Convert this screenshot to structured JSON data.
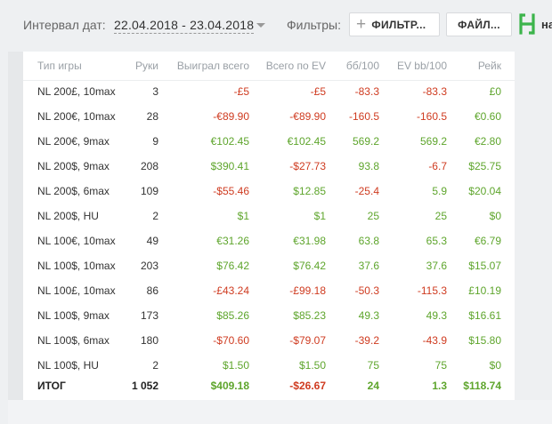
{
  "toolbar": {
    "date_label": "Интервал дат:",
    "date_range": "22.04.2018 - 23.04.2018",
    "filters_label": "Фильтры:",
    "filter_button": "ФИЛЬТР...",
    "file_button": "ФАЙЛ...",
    "brand_text": "на"
  },
  "table": {
    "headers": [
      "Тип игры",
      "Руки",
      "Выиграл всего",
      "Всего по EV",
      "бб/100",
      "EV bb/100",
      "Рейк"
    ],
    "rows": [
      {
        "game": "NL 200£, 10max",
        "hands": "3",
        "won": "-£5",
        "ev": "-£5",
        "bb": "-83.3",
        "evbb": "-83.3",
        "rake": "£0"
      },
      {
        "game": "NL 200€, 10max",
        "hands": "28",
        "won": "-€89.90",
        "ev": "-€89.90",
        "bb": "-160.5",
        "evbb": "-160.5",
        "rake": "€0.60"
      },
      {
        "game": "NL 200€, 9max",
        "hands": "9",
        "won": "€102.45",
        "ev": "€102.45",
        "bb": "569.2",
        "evbb": "569.2",
        "rake": "€2.80"
      },
      {
        "game": "NL 200$, 9max",
        "hands": "208",
        "won": "$390.41",
        "ev": "-$27.73",
        "bb": "93.8",
        "evbb": "-6.7",
        "rake": "$25.75"
      },
      {
        "game": "NL 200$, 6max",
        "hands": "109",
        "won": "-$55.46",
        "ev": "$12.85",
        "bb": "-25.4",
        "evbb": "5.9",
        "rake": "$20.04"
      },
      {
        "game": "NL 200$, HU",
        "hands": "2",
        "won": "$1",
        "ev": "$1",
        "bb": "25",
        "evbb": "25",
        "rake": "$0"
      },
      {
        "game": "NL 100€, 10max",
        "hands": "49",
        "won": "€31.26",
        "ev": "€31.98",
        "bb": "63.8",
        "evbb": "65.3",
        "rake": "€6.79"
      },
      {
        "game": "NL 100$, 10max",
        "hands": "203",
        "won": "$76.42",
        "ev": "$76.42",
        "bb": "37.6",
        "evbb": "37.6",
        "rake": "$15.07"
      },
      {
        "game": "NL 100£, 10max",
        "hands": "86",
        "won": "-£43.24",
        "ev": "-£99.18",
        "bb": "-50.3",
        "evbb": "-115.3",
        "rake": "£10.19"
      },
      {
        "game": "NL 100$, 9max",
        "hands": "173",
        "won": "$85.26",
        "ev": "$85.23",
        "bb": "49.3",
        "evbb": "49.3",
        "rake": "$16.61"
      },
      {
        "game": "NL 100$, 6max",
        "hands": "180",
        "won": "-$70.60",
        "ev": "-$79.07",
        "bb": "-39.2",
        "evbb": "-43.9",
        "rake": "$15.80"
      },
      {
        "game": "NL 100$, HU",
        "hands": "2",
        "won": "$1.50",
        "ev": "$1.50",
        "bb": "75",
        "evbb": "75",
        "rake": "$0"
      }
    ],
    "total": {
      "game": "ИТОГ",
      "hands": "1 052",
      "won": "$409.18",
      "ev": "-$26.67",
      "bb": "24",
      "evbb": "1.3",
      "rake": "$118.74"
    }
  },
  "colors": {
    "positive": "#5ea52c",
    "negative": "#cf3b20",
    "brand": "#3cb44b"
  },
  "icons": {
    "add": "plus-icon",
    "dropdown": "caret-down-icon",
    "brand": "brand-logo-icon"
  }
}
